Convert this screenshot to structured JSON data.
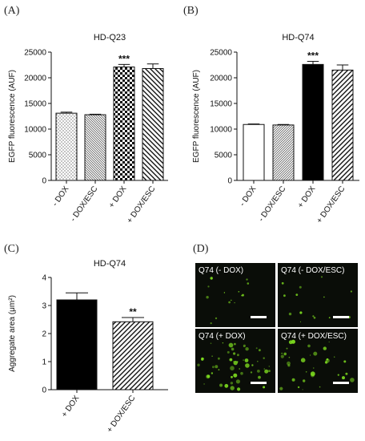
{
  "panels": {
    "A": "(A)",
    "B": "(B)",
    "C": "(C)",
    "D": "(D)"
  },
  "chart_data": [
    {
      "panel": "A",
      "type": "bar",
      "title": "HD-Q23",
      "ylabel": "EGFP fluorescence (AUF)",
      "xlabel": "",
      "ylim": [
        0,
        25000
      ],
      "yticks": [
        0,
        5000,
        10000,
        15000,
        20000,
        25000
      ],
      "yticklabels": [
        "0",
        "5000",
        "10000",
        "15000",
        "20000",
        "25000"
      ],
      "categories": [
        "- DOX",
        "- DOX/ESC",
        "+ DOX",
        "+ DOX/ESC"
      ],
      "values": [
        13100,
        12800,
        22100,
        21800
      ],
      "errors": [
        200,
        100,
        500,
        900
      ],
      "fills": [
        "dots",
        "hatch-back",
        "checker",
        "hatch-back-wide"
      ],
      "annotations": [
        {
          "category": "+ DOX",
          "text": "***"
        }
      ],
      "grid": false
    },
    {
      "panel": "B",
      "type": "bar",
      "title": "HD-Q74",
      "ylabel": "EGFP fluorescence (AUF)",
      "xlabel": "",
      "ylim": [
        0,
        25000
      ],
      "yticks": [
        0,
        5000,
        10000,
        15000,
        20000,
        25000
      ],
      "yticklabels": [
        "0",
        "5000",
        "10000",
        "15000",
        "20000",
        "25000"
      ],
      "categories": [
        "- DOX",
        "- DOX/ESC",
        "+ DOX",
        "+ DOX/ESC"
      ],
      "values": [
        10900,
        10800,
        22600,
        21500
      ],
      "errors": [
        100,
        100,
        600,
        1000
      ],
      "fills": [
        "white",
        "hatch-fwd",
        "black",
        "hatch-fwd-wide"
      ],
      "annotations": [
        {
          "category": "+ DOX",
          "text": "***"
        }
      ],
      "grid": false
    },
    {
      "panel": "C",
      "type": "bar",
      "title": "HD-Q74",
      "ylabel": "Aggregate area (μm²)",
      "xlabel": "",
      "ylim": [
        0,
        4
      ],
      "yticks": [
        0,
        1,
        2,
        3,
        4
      ],
      "yticklabels": [
        "0",
        "1",
        "2",
        "3",
        "4"
      ],
      "categories": [
        "+ DOX",
        "+ DOX/ESC"
      ],
      "values": [
        3.2,
        2.42
      ],
      "errors": [
        0.25,
        0.15
      ],
      "fills": [
        "black",
        "hatch-fwd-wide"
      ],
      "annotations": [
        {
          "category": "+ DOX/ESC",
          "text": "**"
        }
      ],
      "grid": false
    }
  ],
  "micrographs": [
    {
      "label": "Q74 (- DOX)",
      "density": "low"
    },
    {
      "label": "Q74 (- DOX/ESC)",
      "density": "low"
    },
    {
      "label": "Q74 (+ DOX)",
      "density": "high"
    },
    {
      "label": "Q74 (+ DOX/ESC)",
      "density": "medium"
    }
  ],
  "colors": {
    "bar_black": "#000000",
    "micro_bg": "#0a0d08",
    "micro_green": "#7ddc1f"
  }
}
